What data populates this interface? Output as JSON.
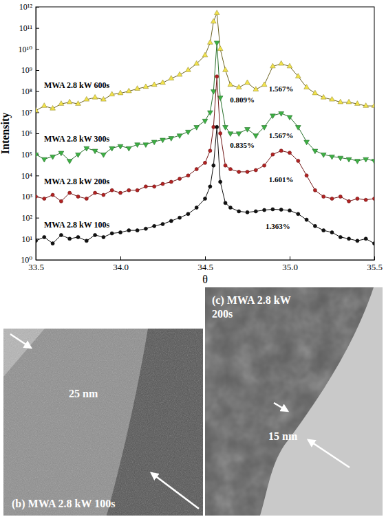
{
  "chart_data": {
    "type": "line",
    "x_label": "θ",
    "y_label": "Intensity",
    "log": "y",
    "grid": false,
    "xlim": [
      33.5,
      35.5
    ],
    "xticks": [
      33.5,
      {
        "value": 34,
        "label": "34.0"
      },
      34.5,
      {
        "value": 35,
        "label": "35.0"
      },
      35.5
    ],
    "ylim": [
      1,
      1000000000000
    ],
    "yticks": [
      {
        "value": 1,
        "label": "10⁰"
      },
      {
        "value": 10,
        "label": "10¹"
      },
      {
        "value": 100,
        "label": "10²"
      },
      {
        "value": 1000,
        "label": "10³"
      },
      {
        "value": 10000,
        "label": "10⁴"
      },
      {
        "value": 100000,
        "label": "10⁵"
      },
      {
        "value": 1000000,
        "label": "10⁶"
      },
      {
        "value": 10000000,
        "label": "10⁷"
      },
      {
        "value": 100000000,
        "label": "10⁸"
      },
      {
        "value": 1000000000,
        "label": "10⁹"
      },
      {
        "value": 10000000000,
        "label": "10¹⁰"
      },
      {
        "value": 100000000000,
        "label": "10¹¹"
      },
      {
        "value": 1000000000000,
        "label": "10¹²"
      }
    ],
    "x": [
      33.5,
      33.55,
      33.6,
      33.65,
      33.7,
      33.75,
      33.8,
      33.85,
      33.9,
      33.95,
      34.0,
      34.05,
      34.1,
      34.15,
      34.2,
      34.25,
      34.3,
      34.35,
      34.4,
      34.45,
      34.5,
      34.53,
      34.55,
      34.57,
      34.59,
      34.62,
      34.65,
      34.7,
      34.75,
      34.8,
      34.85,
      34.9,
      34.95,
      35.0,
      35.05,
      35.1,
      35.15,
      35.2,
      35.25,
      35.3,
      35.35,
      35.4,
      35.45,
      35.5
    ],
    "series": [
      {
        "name": "MWA 2.8 kW 600s",
        "color": "#f2e34c",
        "marker": "triangle-up",
        "values": [
          12000000,
          20000000,
          15000000,
          25000000,
          30000000,
          25000000,
          40000000,
          50000000,
          40000000,
          70000000,
          80000000,
          100000000,
          130000000,
          160000000,
          200000000,
          250000000,
          400000000,
          600000000,
          1000000000,
          2000000000,
          5000000000,
          20000000000,
          200000000000,
          500000000000,
          10000000000,
          1000000000,
          200000000,
          150000000,
          250000000,
          120000000,
          200000000,
          1500000000,
          2000000000,
          1500000000,
          500000000,
          150000000,
          80000000,
          50000000,
          40000000,
          30000000,
          30000000,
          25000000,
          20000000,
          20000000
        ]
      },
      {
        "name": "MWA 2.8 kW 300s",
        "color": "#3cb043",
        "marker": "triangle-down",
        "values": [
          100000,
          60000,
          80000,
          120000,
          50000,
          100000,
          200000,
          150000,
          100000,
          200000,
          250000,
          200000,
          300000,
          300000,
          400000,
          500000,
          600000,
          800000,
          1200000,
          2000000,
          4000000,
          10000000,
          100000000,
          20000000000,
          50000000,
          2000000,
          1000000,
          1000000,
          1600000,
          800000,
          2000000,
          7000000,
          9000000,
          6000000,
          2000000,
          400000,
          150000,
          100000,
          80000,
          70000,
          60000,
          50000,
          60000,
          50000
        ]
      },
      {
        "name": "MWA 2.8 kW 200s",
        "color": "#b22222",
        "marker": "circle",
        "values": [
          1000,
          800,
          1200,
          600,
          1500,
          1000,
          800,
          1500,
          1200,
          2000,
          1500,
          2000,
          2000,
          3000,
          3000,
          4000,
          5000,
          7000,
          10000,
          20000,
          40000,
          150000,
          2000000,
          500000000,
          1000000,
          30000,
          20000,
          15000,
          15000,
          18000,
          30000,
          100000,
          150000,
          120000,
          50000,
          10000,
          2000,
          1000,
          800,
          1000,
          600,
          800,
          700,
          800
        ]
      },
      {
        "name": "MWA 2.8 kW 100s",
        "color": "#111111",
        "marker": "circle",
        "values": [
          8,
          12,
          6,
          15,
          10,
          12,
          8,
          15,
          12,
          18,
          20,
          25,
          25,
          30,
          40,
          50,
          70,
          100,
          150,
          300,
          800,
          3000,
          30000,
          2000000,
          5000,
          500,
          300,
          200,
          180,
          200,
          230,
          250,
          240,
          220,
          150,
          80,
          40,
          25,
          20,
          12,
          10,
          8,
          10,
          6
        ]
      }
    ],
    "annotations": [
      {
        "text": "1.567%",
        "x": 34.95,
        "y": 100000000
      },
      {
        "text": "0.809%",
        "x": 34.72,
        "y": 30000000
      },
      {
        "text": "1.567%",
        "x": 34.95,
        "y": 600000
      },
      {
        "text": "0.835%",
        "x": 34.72,
        "y": 200000
      },
      {
        "text": "1.601%",
        "x": 34.95,
        "y": 5000
      },
      {
        "text": "1.363%",
        "x": 34.93,
        "y": 30
      }
    ]
  },
  "images": [
    {
      "label": "(b) MWA 2.8 kW 100s",
      "scale": "25 nm"
    },
    {
      "label": "(c) MWA 2.8 kW 200s",
      "scale": "15 nm"
    }
  ]
}
